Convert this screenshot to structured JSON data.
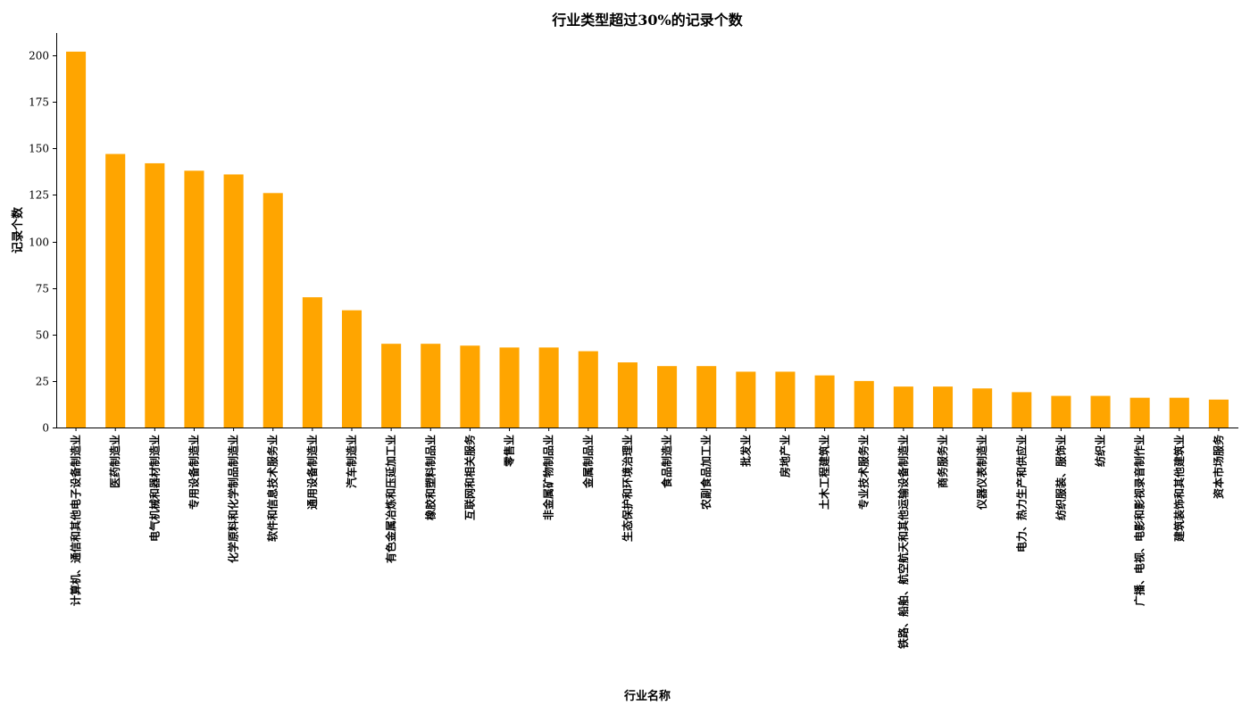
{
  "chart_data": {
    "type": "bar",
    "title": "行业类型超过30%的记录个数",
    "xlabel": "行业名称",
    "ylabel": "记录个数",
    "ylim": [
      0,
      212
    ],
    "yticks": [
      0,
      25,
      50,
      75,
      100,
      125,
      150,
      175,
      200
    ],
    "bar_color": "#ffa500",
    "grid": false,
    "legend": "none",
    "categories": [
      "计算机、通信和其他电子设备制造业",
      "医药制造业",
      "电气机械和器材制造业",
      "专用设备制造业",
      "化学原料和化学制品制造业",
      "软件和信息技术服务业",
      "通用设备制造业",
      "汽车制造业",
      "有色金属冶炼和压延加工业",
      "橡胶和塑料制品业",
      "互联网和相关服务",
      "零售业",
      "非金属矿物制品业",
      "金属制品业",
      "生态保护和环境治理业",
      "食品制造业",
      "农副食品加工业",
      "批发业",
      "房地产业",
      "土木工程建筑业",
      "专业技术服务业",
      "铁路、船舶、航空航天和其他运输设备制造业",
      "商务服务业",
      "仪器仪表制造业",
      "电力、热力生产和供应业",
      "纺织服装、服饰业",
      "纺织业",
      "广播、电视、电影和影视录音制作业",
      "建筑装饰和其他建筑业",
      "资本市场服务"
    ],
    "values": [
      202,
      147,
      142,
      138,
      136,
      126,
      70,
      63,
      45,
      45,
      44,
      43,
      43,
      41,
      35,
      33,
      33,
      30,
      30,
      28,
      25,
      22,
      22,
      21,
      19,
      17,
      17,
      16,
      16,
      15
    ]
  }
}
